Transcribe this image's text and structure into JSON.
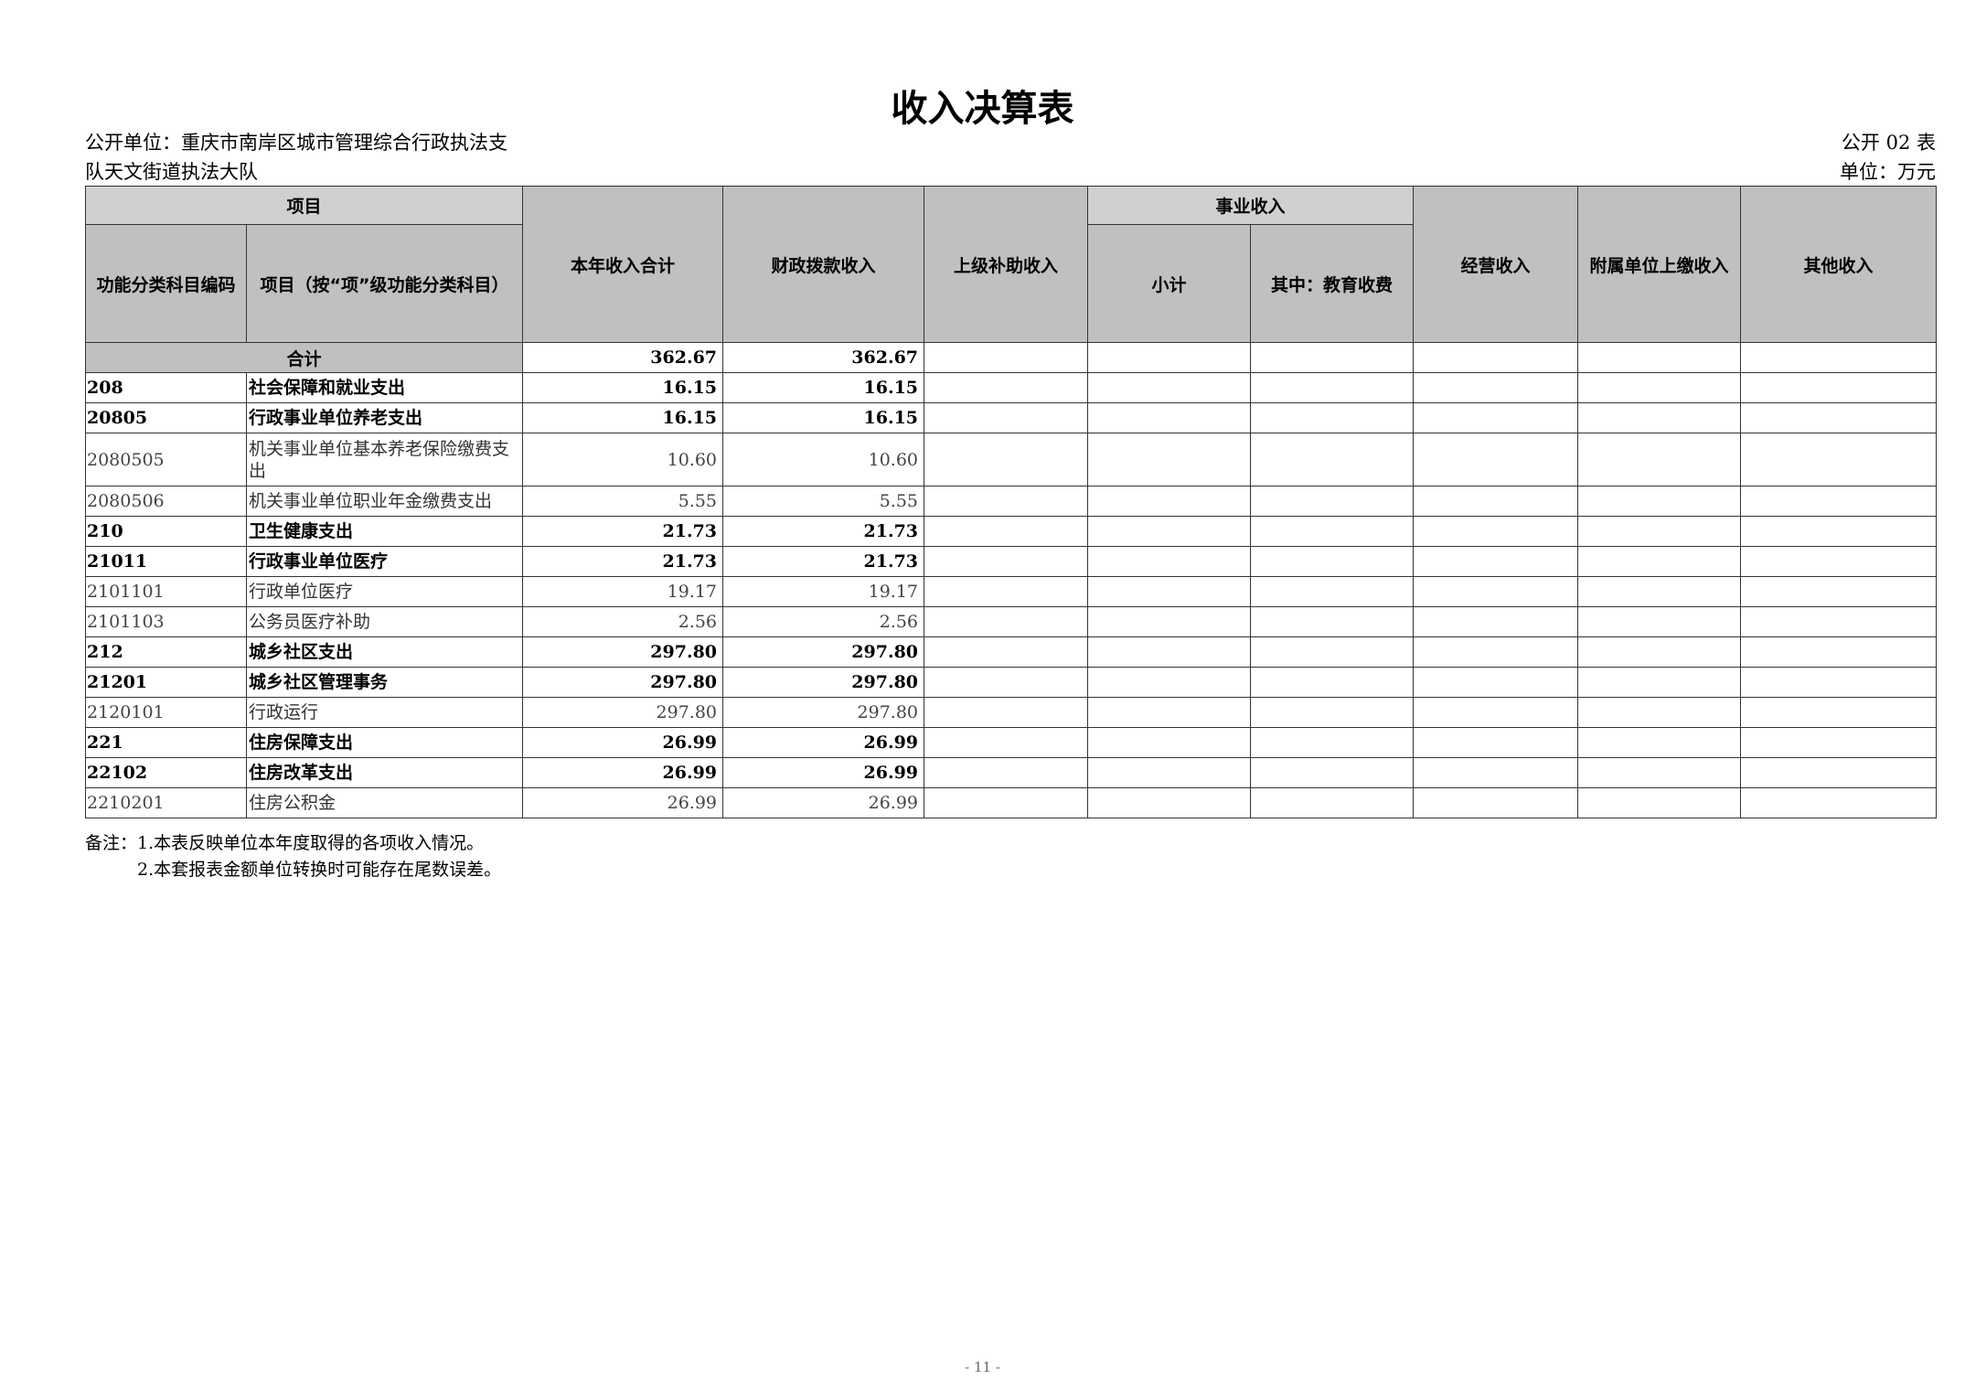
{
  "title": "收入决算表",
  "unit_line1": "公开单位：重庆市南岸区城市管理综合行政执法支",
  "unit_line2": "队天文街道执法大队",
  "form_no": "公开 02 表",
  "currency_unit": "单位：万元",
  "headers": {
    "project": "项目",
    "code": "功能分类科目编码",
    "item": "项目（按“项”级功能分类科目）",
    "total": "本年收入合计",
    "fiscal": "财政拨款收入",
    "superior": "上级补助收入",
    "business": "事业收入",
    "subtotal": "小计",
    "edu": "其中：教育收费",
    "operating": "经营收入",
    "affiliated": "附属单位上缴收入",
    "other": "其他收入"
  },
  "total_row": {
    "label": "合计",
    "total": "362.67",
    "fiscal": "362.67"
  },
  "rows": [
    {
      "code": "208",
      "item": "社会保障和就业支出",
      "total": "16.15",
      "fiscal": "16.15",
      "bold": true
    },
    {
      "code": "20805",
      "item": "行政事业单位养老支出",
      "total": "16.15",
      "fiscal": "16.15",
      "bold": true
    },
    {
      "code": "2080505",
      "item": "机关事业单位基本养老保险缴费支出",
      "total": "10.60",
      "fiscal": "10.60",
      "bold": false
    },
    {
      "code": "2080506",
      "item": "机关事业单位职业年金缴费支出",
      "total": "5.55",
      "fiscal": "5.55",
      "bold": false
    },
    {
      "code": "210",
      "item": "卫生健康支出",
      "total": "21.73",
      "fiscal": "21.73",
      "bold": true
    },
    {
      "code": "21011",
      "item": "行政事业单位医疗",
      "total": "21.73",
      "fiscal": "21.73",
      "bold": true
    },
    {
      "code": "2101101",
      "item": "行政单位医疗",
      "total": "19.17",
      "fiscal": "19.17",
      "bold": false
    },
    {
      "code": "2101103",
      "item": "公务员医疗补助",
      "total": "2.56",
      "fiscal": "2.56",
      "bold": false
    },
    {
      "code": "212",
      "item": "城乡社区支出",
      "total": "297.80",
      "fiscal": "297.80",
      "bold": true
    },
    {
      "code": "21201",
      "item": "城乡社区管理事务",
      "total": "297.80",
      "fiscal": "297.80",
      "bold": true
    },
    {
      "code": "2120101",
      "item": "行政运行",
      "total": "297.80",
      "fiscal": "297.80",
      "bold": false
    },
    {
      "code": "221",
      "item": "住房保障支出",
      "total": "26.99",
      "fiscal": "26.99",
      "bold": true
    },
    {
      "code": "22102",
      "item": "住房改革支出",
      "total": "26.99",
      "fiscal": "26.99",
      "bold": true
    },
    {
      "code": "2210201",
      "item": "住房公积金",
      "total": "26.99",
      "fiscal": "26.99",
      "bold": false
    }
  ],
  "notes": [
    "备注：1.本表反映单位本年度取得的各项收入情况。",
    "2.本套报表金额单位转换时可能存在尾数误差。"
  ],
  "page_number": "- 11 -"
}
